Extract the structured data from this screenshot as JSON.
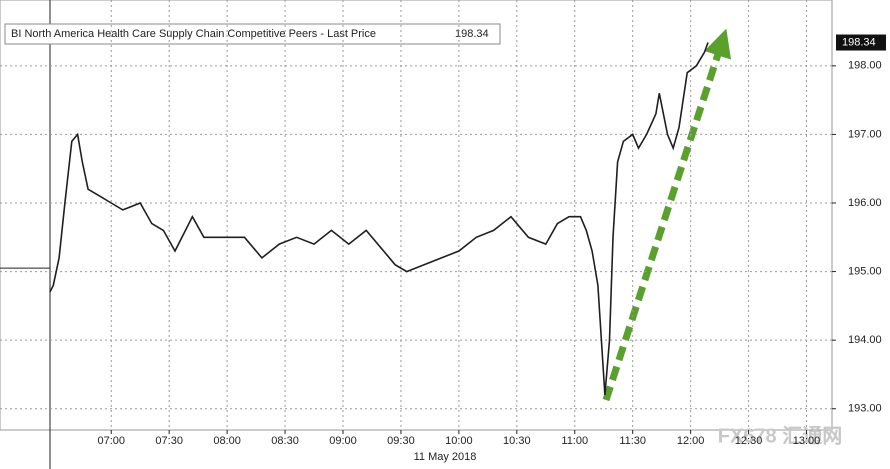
{
  "chart_data": {
    "type": "line",
    "title": "BI North America Health Care Supply Chain Competitive Peers - Last Price",
    "last_price": 198.34,
    "last_price_label": "198.34",
    "prev_close": 195.05,
    "date_label": "11 May 2018",
    "watermark": "FX678 汇通网",
    "series": [
      {
        "name": "BI North America Health Care Supply Chain Competitive Peers",
        "color": "#1f1f1f",
        "x": [
          6.47,
          6.5,
          6.55,
          6.6,
          6.66,
          6.71,
          6.75,
          6.8,
          6.9,
          7.0,
          7.1,
          7.25,
          7.35,
          7.45,
          7.55,
          7.7,
          7.8,
          8.0,
          8.15,
          8.3,
          8.45,
          8.6,
          8.75,
          8.9,
          9.05,
          9.2,
          9.35,
          9.45,
          9.55,
          9.7,
          9.85,
          10.0,
          10.15,
          10.3,
          10.45,
          10.6,
          10.75,
          10.85,
          10.95,
          11.05,
          11.1,
          11.15,
          11.2,
          11.23,
          11.26,
          11.3,
          11.33,
          11.37,
          11.42,
          11.5,
          11.55,
          11.62,
          11.7,
          11.73,
          11.8,
          11.85,
          11.9,
          11.97,
          12.05,
          12.12,
          12.15
        ],
        "values": [
          194.7,
          194.8,
          195.2,
          196.0,
          196.9,
          197.0,
          196.6,
          196.2,
          196.1,
          196.0,
          195.9,
          196.0,
          195.7,
          195.6,
          195.3,
          195.8,
          195.5,
          195.5,
          195.5,
          195.2,
          195.4,
          195.5,
          195.4,
          195.6,
          195.4,
          195.6,
          195.3,
          195.1,
          195.0,
          195.1,
          195.2,
          195.3,
          195.5,
          195.6,
          195.8,
          195.5,
          195.4,
          195.7,
          195.8,
          195.8,
          195.6,
          195.3,
          194.8,
          194.0,
          193.2,
          194.0,
          195.5,
          196.6,
          196.9,
          197.0,
          196.8,
          197.0,
          197.3,
          197.6,
          197.0,
          196.8,
          197.1,
          197.9,
          198.0,
          198.2,
          198.34
        ]
      }
    ],
    "xlim": [
      6.04,
      13.22
    ],
    "xticks": [
      {
        "value": 7,
        "label": "07:00"
      },
      {
        "value": 7.5,
        "label": "07:30"
      },
      {
        "value": 8,
        "label": "08:00"
      },
      {
        "value": 8.5,
        "label": "08:30"
      },
      {
        "value": 9,
        "label": "09:00"
      },
      {
        "value": 9.5,
        "label": "09:30"
      },
      {
        "value": 10,
        "label": "10:00"
      },
      {
        "value": 10.5,
        "label": "10:30"
      },
      {
        "value": 11,
        "label": "11:00"
      },
      {
        "value": 11.5,
        "label": "11:30"
      },
      {
        "value": 12,
        "label": "12:00"
      },
      {
        "value": 12.5,
        "label": "12:30"
      },
      {
        "value": 13,
        "label": "13:00"
      }
    ],
    "ylim": [
      192.69,
      198.96
    ],
    "yticks": [
      {
        "value": 193,
        "label": "193.00"
      },
      {
        "value": 194,
        "label": "194.00"
      },
      {
        "value": 195,
        "label": "195.00"
      },
      {
        "value": 196,
        "label": "196.00"
      },
      {
        "value": 197,
        "label": "197.00"
      },
      {
        "value": 198,
        "label": "198.00"
      }
    ],
    "grid": true
  }
}
